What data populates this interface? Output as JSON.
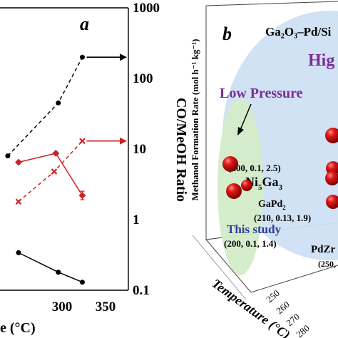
{
  "chart_data": [
    {
      "panel_label": "a",
      "type": "line",
      "xlabel": "e (°C)",
      "ylabel_right": "CO/MeOH Ratio",
      "x_ticks": [
        "300",
        "350"
      ],
      "y_right_ticks": [
        "1000",
        "100",
        "10",
        "1",
        "0.1"
      ],
      "y_right_scale": "log",
      "y_right_lim": [
        0.1,
        1000
      ],
      "x_lim": [
        245,
        350
      ],
      "grid": false,
      "series": [
        {
          "color": "#000000",
          "style": "dashed",
          "marker": "circle",
          "points": [
            [
              232,
              8
            ],
            [
              293,
              45
            ],
            [
              322,
              200
            ]
          ]
        },
        {
          "color": "#cc2222",
          "style": "solid",
          "marker": "diamond",
          "points": [
            [
              245,
              6.5
            ],
            [
              290,
              8.7
            ],
            [
              322,
              2.2
            ]
          ]
        },
        {
          "color": "#cc2222",
          "style": "dashed",
          "marker": "x",
          "points": [
            [
              245,
              1.8
            ],
            [
              288,
              4.8
            ],
            [
              322,
              13
            ]
          ]
        },
        {
          "color": "#000000",
          "style": "solid",
          "marker": "circle",
          "points": [
            [
              245,
              0.34
            ],
            [
              293,
              0.18
            ],
            [
              322,
              0.13
            ]
          ]
        }
      ],
      "arrows": [
        {
          "color": "#000000",
          "at": [
            322,
            200
          ]
        },
        {
          "color": "#cc2222",
          "at": [
            322,
            13
          ]
        }
      ]
    },
    {
      "panel_label": "b",
      "type": "scatter",
      "title": "Ga₂O₃–Pd/Si",
      "xlabel": "Temperature (°C)",
      "ylabel": "Methanol Formation Rate (mol h⁻¹ kg⁻¹)",
      "x_ticks": [
        "250",
        "260",
        "270",
        "280"
      ],
      "region_labels": [
        "Low Pressure",
        "Hig"
      ],
      "annotations": [
        {
          "text_main": "Ni",
          "sub": "5",
          "text_mid": "Ga",
          "sub2": "3",
          "label": "(200, 0.1, 2.5)"
        },
        {
          "text_main": "GaPd",
          "sub": "2",
          "label": "(210, 0.13, 1.9)"
        },
        {
          "text_main": "This study",
          "label": "(200, 0.1, 1.4)"
        },
        {
          "text_main": "PdZr",
          "label": "(250,"
        }
      ],
      "colors": {
        "accent_red": "#cc1c1c",
        "high_region": "#cfe0f3",
        "low_region": "#d4ecc9",
        "label_purple": "#7b2d96",
        "label_blue": "#2a3d9c"
      }
    }
  ]
}
